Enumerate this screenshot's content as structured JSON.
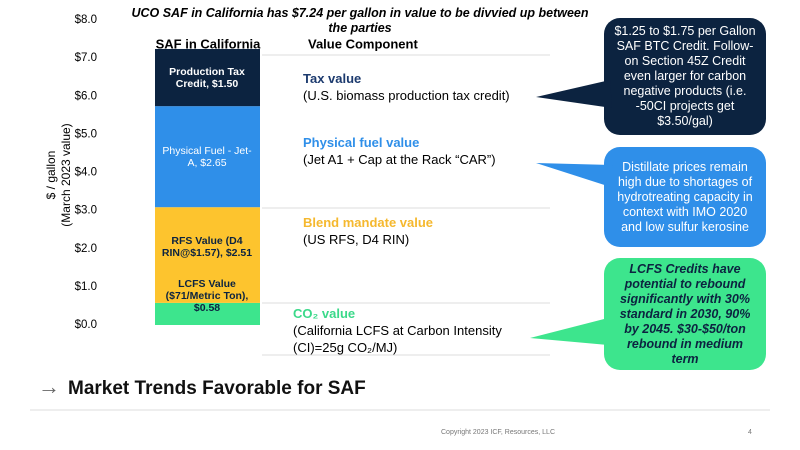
{
  "chart_data": {
    "type": "stacked-bar",
    "title": "UCO SAF in California has $7.24 per gallon in value to be divvied up between the parties",
    "ylabel": "$ / gallon",
    "ylabel2": "(March 2023 value)",
    "bar_header": "SAF in California",
    "component_header": "Value Component",
    "ylim": [
      0,
      8
    ],
    "yticks": [
      {
        "value": 0,
        "label": "$0.0"
      },
      {
        "value": 1,
        "label": "$1.0"
      },
      {
        "value": 2,
        "label": "$2.0"
      },
      {
        "value": 3,
        "label": "$3.0"
      },
      {
        "value": 4,
        "label": "$4.0"
      },
      {
        "value": 5,
        "label": "$5.0"
      },
      {
        "value": 6,
        "label": "$6.0"
      },
      {
        "value": 7,
        "label": "$7.0"
      },
      {
        "value": 8,
        "label": "$8.0"
      }
    ],
    "series": [
      {
        "color": "#3de58d",
        "values": [
          0.58
        ],
        "value_labels": [
          "LCFS Value ($71/Metric Ton), $0.58"
        ]
      },
      {
        "color": "#fdc42e",
        "values": [
          2.51
        ],
        "value_labels": [
          "RFS Value (D4 RIN@$1.57), $2.51"
        ]
      },
      {
        "color": "#2f8fe9",
        "values": [
          2.65
        ],
        "value_labels": [
          "Physical Fuel - Jet-A, $2.65"
        ]
      },
      {
        "color": "#0c2340",
        "values": [
          1.5
        ],
        "value_labels": [
          "Production Tax Credit, $1.50"
        ]
      }
    ],
    "components": [
      {
        "name": "CO₂ value",
        "detail": "(California LCFS at Carbon Intensity (CI)=25g CO₂/MJ)"
      },
      {
        "name": "Blend mandate value",
        "detail": "(US RFS, D4 RIN)"
      },
      {
        "name": "Physical fuel value",
        "detail": "(Jet A1 + Cap at the Rack “CAR”)"
      },
      {
        "name": "Tax value",
        "detail": "(U.S. biomass production tax credit)"
      }
    ],
    "callouts": [
      "LCFS Credits have potential to rebound significantly with 30% standard in 2030, 90% by 2045. $30-$50/ton rebound in medium term",
      "Distillate prices remain high due to shortages of hydrotreating capacity in context with IMO 2020 and low sulfur kerosine",
      "$1.25 to $1.75 per Gallon SAF BTC Credit. Follow-on Section 45Z Credit even larger for carbon negative products (i.e. -50CI projects get $3.50/gal)"
    ]
  },
  "footer": {
    "heading": "Market Trends Favorable for SAF",
    "copyright": "Copyright 2023 ICF, Resources, LLC",
    "page": "4"
  }
}
